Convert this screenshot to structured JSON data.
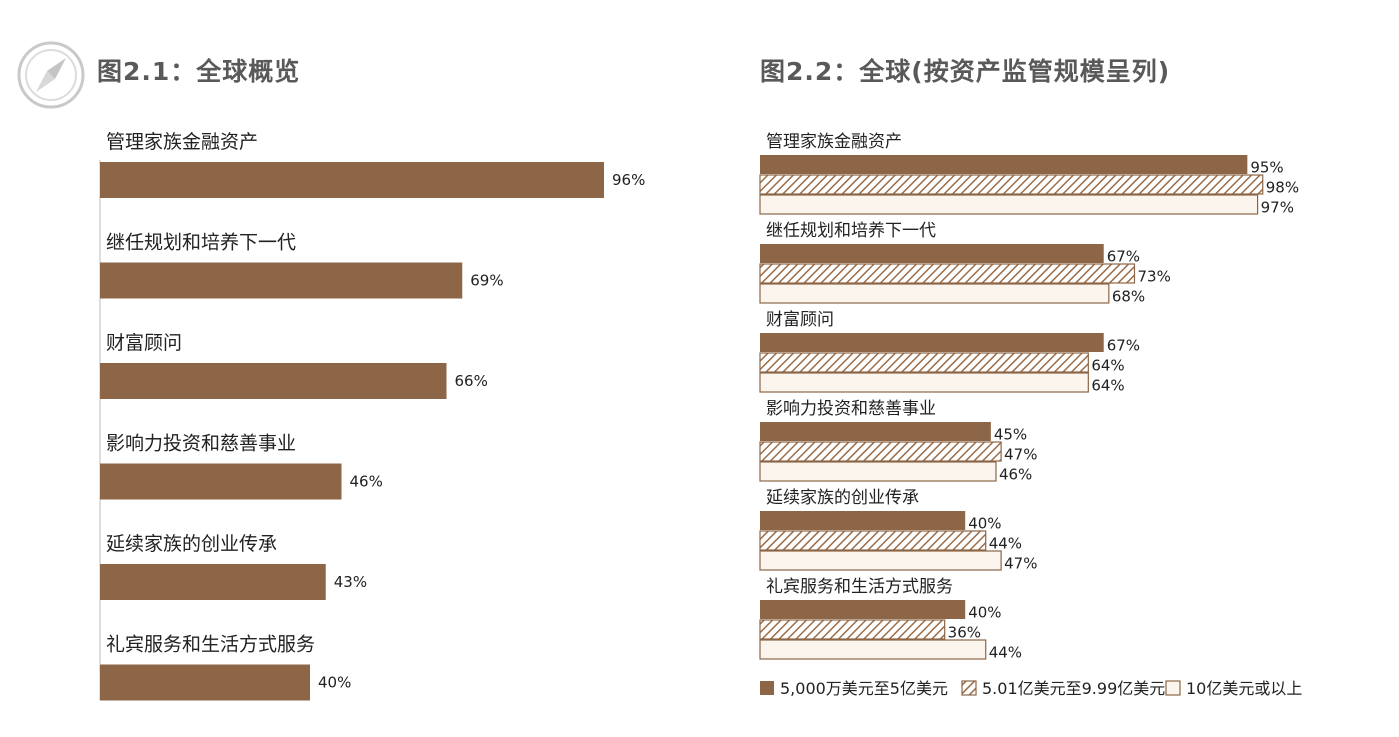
{
  "chart_data": [
    {
      "type": "bar",
      "orientation": "horizontal",
      "title": "图2.1：全球概览",
      "categories": [
        "管理家族金融资产",
        "继任规划和培养下一代",
        "财富顾问",
        "影响力投资和慈善事业",
        "延续家族的创业传承",
        "礼宾服务和生活方式服务"
      ],
      "values": [
        96,
        69,
        66,
        46,
        43,
        40
      ],
      "value_labels": [
        "96%",
        "69%",
        "66%",
        "46%",
        "43%",
        "40%"
      ],
      "xlim": [
        0,
        100
      ],
      "grid": false,
      "colors": {
        "bar": "#8c6646",
        "axis": "#bbbbbb"
      }
    },
    {
      "type": "bar",
      "orientation": "horizontal",
      "title": "图2.2：全球(按资产监管规模呈列)",
      "categories": [
        "管理家族金融资产",
        "继任规划和培养下一代",
        "财富顾问",
        "影响力投资和慈善事业",
        "延续家族的创业传承",
        "礼宾服务和生活方式服务"
      ],
      "series": [
        {
          "name": "5,000万美元至5亿美元",
          "values": [
            95,
            67,
            67,
            45,
            40,
            40
          ],
          "value_labels": [
            "95%",
            "67%",
            "67%",
            "45%",
            "40%",
            "40%"
          ],
          "style": "solid"
        },
        {
          "name": "5.01亿美元至9.99亿美元",
          "values": [
            98,
            73,
            64,
            47,
            44,
            36
          ],
          "value_labels": [
            "98%",
            "73%",
            "64%",
            "47%",
            "44%",
            "36%"
          ],
          "style": "hatched"
        },
        {
          "name": "10亿美元或以上",
          "values": [
            97,
            68,
            64,
            46,
            47,
            44
          ],
          "value_labels": [
            "97%",
            "68%",
            "64%",
            "46%",
            "47%",
            "44%"
          ],
          "style": "light"
        }
      ],
      "xlim": [
        0,
        100
      ],
      "grid": false,
      "legend": "bottom",
      "colors": {
        "solid": "#8c6646",
        "hatch": "#9a6c48",
        "light_fill": "#fbf5ee",
        "outline": "#8c6646"
      }
    }
  ],
  "icons": {
    "logo": "compass-icon"
  }
}
